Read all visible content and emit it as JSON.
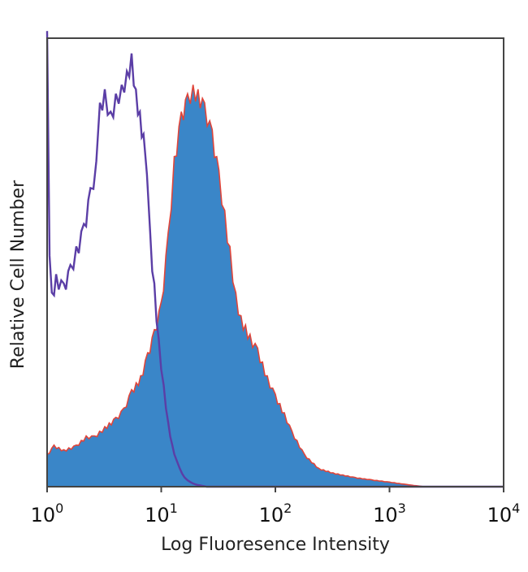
{
  "chart_data": {
    "type": "area",
    "title": "",
    "xlabel": "Log Fluoresence Intensity",
    "ylabel": "Relative Cell Number",
    "x_scale": "log",
    "xlim": [
      1,
      10000
    ],
    "ylim": [
      0,
      100
    ],
    "x_ticks": [
      {
        "value": 1,
        "base": "10",
        "exp": "0"
      },
      {
        "value": 10,
        "base": "10",
        "exp": "1"
      },
      {
        "value": 100,
        "base": "10",
        "exp": "2"
      },
      {
        "value": 1000,
        "base": "10",
        "exp": "3"
      },
      {
        "value": 10000,
        "base": "10",
        "exp": "4"
      }
    ],
    "grid": false,
    "legend": "none",
    "series": [
      {
        "style": "filled-area",
        "fill_color": "#3a86c8",
        "edge_color": "#e0453a",
        "points": [
          [
            1,
            7
          ],
          [
            1.15,
            9
          ],
          [
            1.4,
            8
          ],
          [
            1.8,
            9
          ],
          [
            2.2,
            11
          ],
          [
            2.6,
            11
          ],
          [
            3.2,
            13
          ],
          [
            4,
            15
          ],
          [
            4.7,
            17
          ],
          [
            5.5,
            21
          ],
          [
            6.6,
            24
          ],
          [
            7.6,
            29
          ],
          [
            8.7,
            34
          ],
          [
            10,
            40
          ],
          [
            11.5,
            55
          ],
          [
            13,
            72
          ],
          [
            15,
            82
          ],
          [
            17,
            86
          ],
          [
            19,
            88
          ],
          [
            21,
            87
          ],
          [
            24,
            84
          ],
          [
            28,
            78
          ],
          [
            32,
            69
          ],
          [
            36,
            60
          ],
          [
            40,
            52
          ],
          [
            45,
            42
          ],
          [
            50,
            37
          ],
          [
            60,
            33
          ],
          [
            70,
            30
          ],
          [
            85,
            24
          ],
          [
            100,
            20
          ],
          [
            120,
            16
          ],
          [
            140,
            12
          ],
          [
            180,
            7
          ],
          [
            240,
            4
          ],
          [
            320,
            3
          ],
          [
            500,
            2
          ],
          [
            700,
            1.5
          ],
          [
            1000,
            1
          ],
          [
            1400,
            0.5
          ],
          [
            2000,
            0
          ]
        ]
      },
      {
        "style": "line",
        "line_color": "#5b3ea6",
        "points": [
          [
            1,
            100
          ],
          [
            1.05,
            50
          ],
          [
            1.1,
            42
          ],
          [
            1.2,
            46
          ],
          [
            1.4,
            44
          ],
          [
            1.6,
            48
          ],
          [
            1.8,
            52
          ],
          [
            2.1,
            57
          ],
          [
            2.4,
            65
          ],
          [
            2.7,
            71
          ],
          [
            2.9,
            84
          ],
          [
            3.2,
            87
          ],
          [
            3.6,
            82
          ],
          [
            4,
            86
          ],
          [
            4.5,
            88
          ],
          [
            5,
            91
          ],
          [
            5.5,
            95
          ],
          [
            6,
            87
          ],
          [
            6.5,
            82
          ],
          [
            7,
            77
          ],
          [
            7.5,
            68
          ],
          [
            8,
            55
          ],
          [
            8.7,
            44
          ],
          [
            9.5,
            32
          ],
          [
            10.5,
            22
          ],
          [
            11.5,
            14
          ],
          [
            12.5,
            9
          ],
          [
            13.5,
            6
          ],
          [
            14.5,
            4
          ],
          [
            16,
            2
          ],
          [
            18,
            1
          ],
          [
            20,
            0.5
          ],
          [
            25,
            0
          ],
          [
            10000,
            0
          ]
        ]
      }
    ]
  }
}
